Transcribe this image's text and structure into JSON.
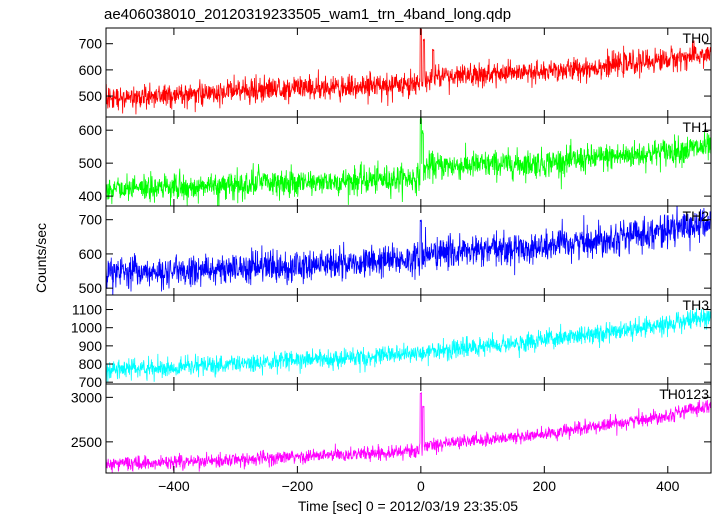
{
  "chart_data": {
    "type": "line",
    "title": "ae406038010_20120319233505_wam1_trn_4band_long.qdp",
    "xlabel": "Time [sec] 0 = 2012/03/19 23:35:05",
    "ylabel": "Counts/sec",
    "xlim": [
      -510,
      470
    ],
    "x_ticks": [
      -400,
      -200,
      0,
      200,
      400
    ],
    "x_tick_labels": [
      "−400",
      "−200",
      "0",
      "200",
      "400"
    ],
    "panels": [
      {
        "name": "TH0",
        "color": "#ff0000",
        "ylim": [
          420,
          760
        ],
        "y_ticks": [
          500,
          600,
          700
        ],
        "y_tick_labels": [
          "500",
          "600",
          "700"
        ],
        "trend": {
          "x": [
            -510,
            -400,
            -200,
            -5,
            10,
            200,
            400,
            470
          ],
          "y": [
            490,
            500,
            530,
            545,
            570,
            590,
            640,
            660
          ]
        },
        "noise": 40,
        "spikes": [
          {
            "x": 0,
            "y": 760
          },
          {
            "x": 5,
            "y": 720
          },
          {
            "x": 20,
            "y": 680
          }
        ]
      },
      {
        "name": "TH1",
        "color": "#00ff00",
        "ylim": [
          370,
          640
        ],
        "y_ticks": [
          400,
          500,
          600
        ],
        "y_tick_labels": [
          "400",
          "500",
          "600"
        ],
        "trend": {
          "x": [
            -510,
            -400,
            -200,
            -5,
            10,
            200,
            400,
            470
          ],
          "y": [
            420,
            425,
            440,
            455,
            490,
            500,
            535,
            550
          ]
        },
        "noise": 38,
        "spikes": [
          {
            "x": 0,
            "y": 640
          },
          {
            "x": 3,
            "y": 600
          }
        ]
      },
      {
        "name": "TH2",
        "color": "#0000ff",
        "ylim": [
          480,
          740
        ],
        "y_ticks": [
          500,
          600,
          700
        ],
        "y_tick_labels": [
          "500",
          "600",
          "700"
        ],
        "trend": {
          "x": [
            -510,
            -400,
            -200,
            -5,
            10,
            200,
            400,
            470
          ],
          "y": [
            545,
            548,
            565,
            585,
            600,
            620,
            670,
            690
          ]
        },
        "noise": 42,
        "spikes": [
          {
            "x": 0,
            "y": 700
          }
        ]
      },
      {
        "name": "TH3",
        "color": "#00ffff",
        "ylim": [
          690,
          1180
        ],
        "y_ticks": [
          700,
          800,
          900,
          1000,
          1100
        ],
        "y_tick_labels": [
          "700",
          "800",
          "900",
          "1000",
          "1100"
        ],
        "trend": {
          "x": [
            -510,
            -400,
            -200,
            0,
            200,
            400,
            470
          ],
          "y": [
            770,
            780,
            820,
            860,
            930,
            1020,
            1060
          ]
        },
        "noise": 48,
        "spikes": []
      },
      {
        "name": "TH0123",
        "color": "#ff00ff",
        "ylim": [
          2150,
          3150
        ],
        "y_ticks": [
          2500,
          3000
        ],
        "y_tick_labels": [
          "2500",
          "3000"
        ],
        "trend": {
          "x": [
            -510,
            -400,
            -200,
            -5,
            10,
            200,
            400,
            470
          ],
          "y": [
            2250,
            2270,
            2330,
            2400,
            2470,
            2580,
            2800,
            2920
          ]
        },
        "noise": 70,
        "spikes": [
          {
            "x": 0,
            "y": 3050
          },
          {
            "x": 4,
            "y": 2900
          }
        ]
      }
    ]
  }
}
